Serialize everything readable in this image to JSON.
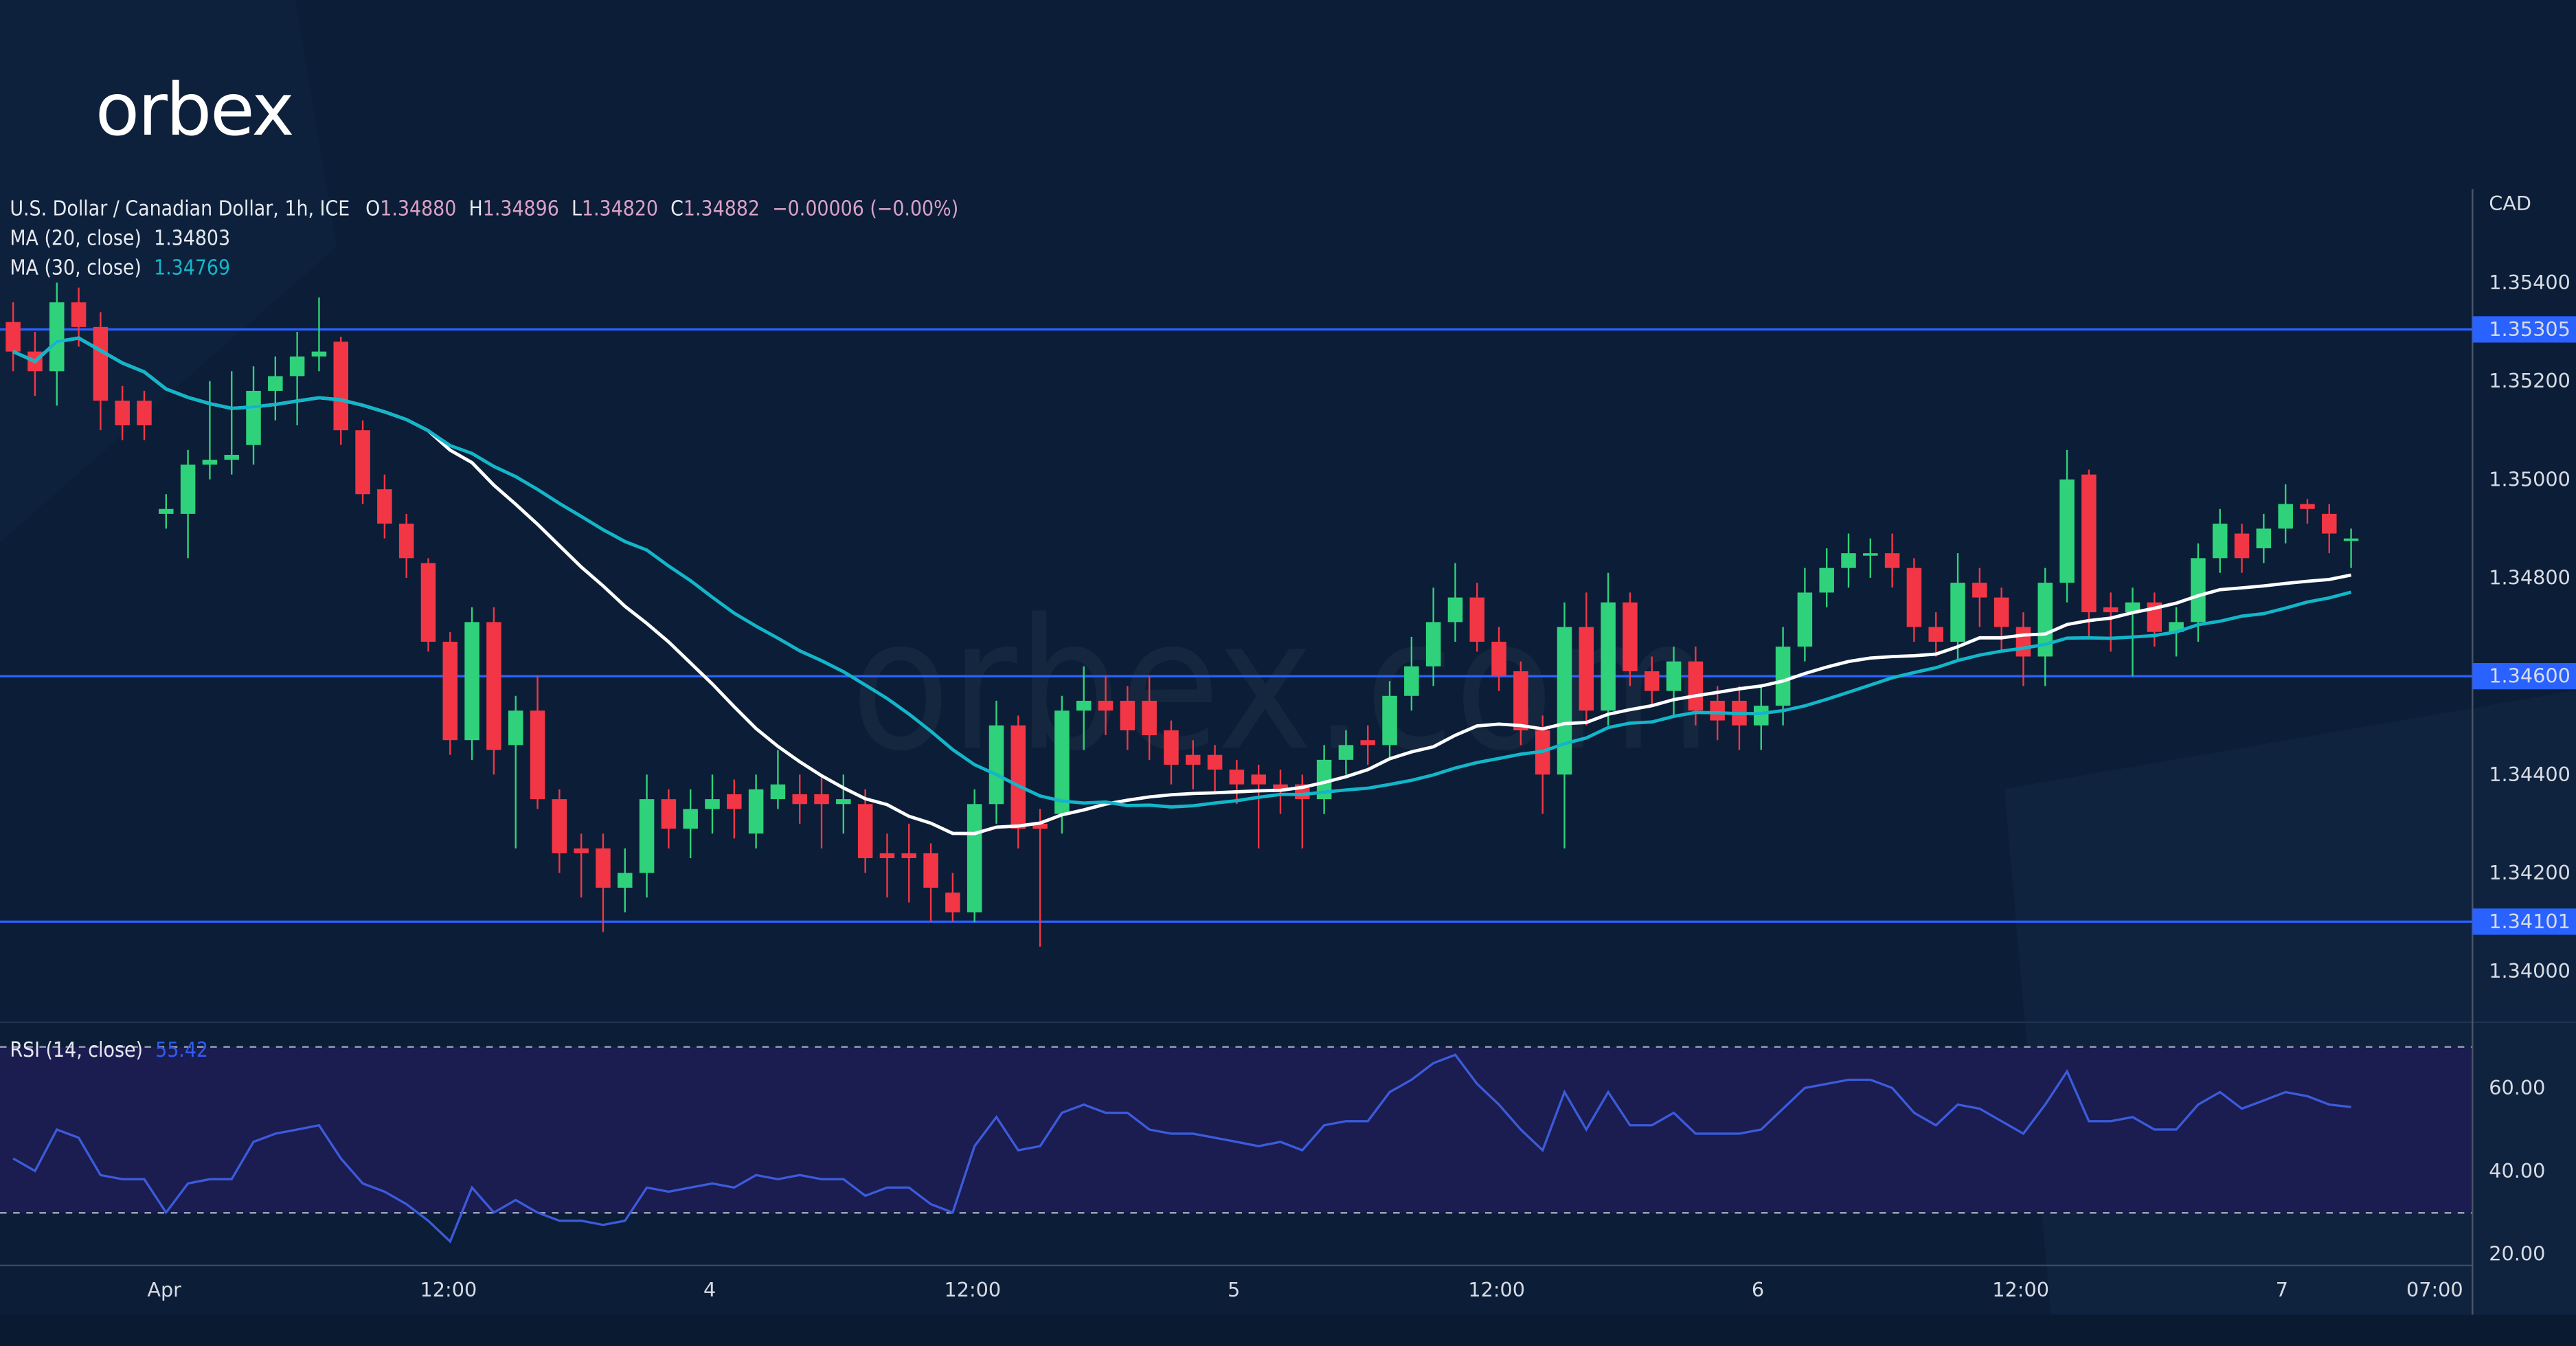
{
  "logo": "orbex",
  "watermark": "orbex.com",
  "colors": {
    "background": "#0b1d37",
    "up": "#2fd27a",
    "down": "#f23645",
    "level_line": "#2962ff",
    "ma20": "#ffffff",
    "ma30": "#13b6c9",
    "rsi_line": "#3b5bdb",
    "rsi_band": "#1b1c4f"
  },
  "legend": {
    "symbol": "U.S. Dollar / Canadian Dollar, 1h, ICE",
    "o_label": "O",
    "o": "1.34880",
    "h_label": "H",
    "h": "1.34896",
    "l_label": "L",
    "l": "1.34820",
    "c_label": "C",
    "c": "1.34882",
    "change": "−0.00006 (−0.00%)",
    "ma20_label": "MA (20, close)",
    "ma20_value": "1.34803",
    "ma30_label": "MA (30, close)",
    "ma30_value": "1.34769",
    "rsi_label": "RSI (14, close)",
    "rsi_value": "55.42"
  },
  "chart_data": {
    "type": "candlestick",
    "currency": "CAD",
    "interval": "1h",
    "x_ticks": [
      "Apr",
      "12:00",
      "4",
      "12:00",
      "5",
      "12:00",
      "6",
      "12:00",
      "7",
      "07:00"
    ],
    "y_ticks": [
      "1.35400",
      "1.35200",
      "1.35000",
      "1.34800",
      "1.34600",
      "1.34400",
      "1.34200",
      "1.34000"
    ],
    "ylim": [
      1.3394,
      1.3559
    ],
    "horizontal_levels": [
      "1.35305",
      "1.34600",
      "1.34101"
    ],
    "moving_averages": [
      {
        "name": "MA (20, close)",
        "period": 20
      },
      {
        "name": "MA (30, close)",
        "period": 30
      }
    ],
    "ohlc": [
      [
        1.3532,
        1.3536,
        1.3522,
        1.3526
      ],
      [
        1.3526,
        1.353,
        1.3517,
        1.3522
      ],
      [
        1.3522,
        1.354,
        1.3515,
        1.3536
      ],
      [
        1.3536,
        1.3539,
        1.3527,
        1.3531
      ],
      [
        1.3531,
        1.3534,
        1.351,
        1.3516
      ],
      [
        1.3516,
        1.3519,
        1.3508,
        1.3511
      ],
      [
        1.3516,
        1.3518,
        1.3508,
        1.3511
      ],
      [
        1.3493,
        1.3497,
        1.349,
        1.3494
      ],
      [
        1.3493,
        1.3506,
        1.3484,
        1.3503
      ],
      [
        1.3503,
        1.352,
        1.35,
        1.3504
      ],
      [
        1.3504,
        1.3522,
        1.3501,
        1.3505
      ],
      [
        1.3507,
        1.3523,
        1.3503,
        1.3518
      ],
      [
        1.3518,
        1.3525,
        1.3512,
        1.3521
      ],
      [
        1.3521,
        1.353,
        1.3511,
        1.3525
      ],
      [
        1.3525,
        1.3537,
        1.3522,
        1.3526
      ],
      [
        1.3528,
        1.3529,
        1.3507,
        1.351
      ],
      [
        1.351,
        1.3512,
        1.3495,
        1.3497
      ],
      [
        1.3498,
        1.3501,
        1.3488,
        1.3491
      ],
      [
        1.3491,
        1.3493,
        1.348,
        1.3484
      ],
      [
        1.3483,
        1.3484,
        1.3465,
        1.3467
      ],
      [
        1.3467,
        1.3469,
        1.3444,
        1.3447
      ],
      [
        1.3447,
        1.3474,
        1.3443,
        1.3471
      ],
      [
        1.3471,
        1.3474,
        1.344,
        1.3445
      ],
      [
        1.3446,
        1.3456,
        1.3425,
        1.3453
      ],
      [
        1.3453,
        1.346,
        1.3433,
        1.3435
      ],
      [
        1.3435,
        1.3437,
        1.342,
        1.3424
      ],
      [
        1.3425,
        1.3428,
        1.3415,
        1.3424
      ],
      [
        1.3425,
        1.3428,
        1.3408,
        1.3417
      ],
      [
        1.3417,
        1.3425,
        1.3412,
        1.342
      ],
      [
        1.342,
        1.344,
        1.3415,
        1.3435
      ],
      [
        1.3435,
        1.3437,
        1.3425,
        1.3429
      ],
      [
        1.3429,
        1.3437,
        1.3423,
        1.3433
      ],
      [
        1.3433,
        1.344,
        1.3428,
        1.3435
      ],
      [
        1.3436,
        1.3439,
        1.3427,
        1.3433
      ],
      [
        1.3428,
        1.344,
        1.3425,
        1.3437
      ],
      [
        1.3435,
        1.3445,
        1.3433,
        1.3438
      ],
      [
        1.3436,
        1.344,
        1.343,
        1.3434
      ],
      [
        1.3436,
        1.344,
        1.3425,
        1.3434
      ],
      [
        1.3434,
        1.344,
        1.3428,
        1.3435
      ],
      [
        1.3434,
        1.3437,
        1.342,
        1.3423
      ],
      [
        1.3424,
        1.3428,
        1.3415,
        1.3423
      ],
      [
        1.3424,
        1.343,
        1.3414,
        1.3423
      ],
      [
        1.3424,
        1.3426,
        1.341,
        1.3417
      ],
      [
        1.3416,
        1.342,
        1.341,
        1.3412
      ],
      [
        1.3412,
        1.3437,
        1.341,
        1.3434
      ],
      [
        1.3434,
        1.3455,
        1.343,
        1.345
      ],
      [
        1.345,
        1.3452,
        1.3425,
        1.3429
      ],
      [
        1.343,
        1.3433,
        1.3405,
        1.3429
      ],
      [
        1.3432,
        1.3456,
        1.3428,
        1.3453
      ],
      [
        1.3453,
        1.3462,
        1.3445,
        1.3455
      ],
      [
        1.3455,
        1.346,
        1.3448,
        1.3453
      ],
      [
        1.3455,
        1.3458,
        1.3445,
        1.3449
      ],
      [
        1.3455,
        1.346,
        1.3443,
        1.3448
      ],
      [
        1.3449,
        1.3451,
        1.3438,
        1.3442
      ],
      [
        1.3444,
        1.3447,
        1.3437,
        1.3442
      ],
      [
        1.3444,
        1.3446,
        1.3436,
        1.3441
      ],
      [
        1.3441,
        1.3443,
        1.3434,
        1.3438
      ],
      [
        1.344,
        1.3442,
        1.3425,
        1.3438
      ],
      [
        1.3438,
        1.3441,
        1.3432,
        1.3437
      ],
      [
        1.3438,
        1.344,
        1.3425,
        1.3435
      ],
      [
        1.3435,
        1.3446,
        1.3432,
        1.3443
      ],
      [
        1.3443,
        1.3449,
        1.344,
        1.3446
      ],
      [
        1.3447,
        1.345,
        1.3442,
        1.3446
      ],
      [
        1.3446,
        1.3459,
        1.3443,
        1.3456
      ],
      [
        1.3456,
        1.3468,
        1.3453,
        1.3462
      ],
      [
        1.3462,
        1.3478,
        1.3458,
        1.3471
      ],
      [
        1.3471,
        1.3483,
        1.3467,
        1.3476
      ],
      [
        1.3476,
        1.3479,
        1.3465,
        1.3467
      ],
      [
        1.3467,
        1.347,
        1.3457,
        1.346
      ],
      [
        1.3461,
        1.3463,
        1.3446,
        1.3449
      ],
      [
        1.3449,
        1.3452,
        1.3432,
        1.344
      ],
      [
        1.344,
        1.3475,
        1.3425,
        1.347
      ],
      [
        1.347,
        1.3477,
        1.345,
        1.3453
      ],
      [
        1.3453,
        1.3481,
        1.345,
        1.3475
      ],
      [
        1.3475,
        1.3477,
        1.3458,
        1.3461
      ],
      [
        1.3461,
        1.3464,
        1.3454,
        1.3457
      ],
      [
        1.3457,
        1.3466,
        1.3452,
        1.3463
      ],
      [
        1.3463,
        1.3466,
        1.345,
        1.3453
      ],
      [
        1.3455,
        1.3458,
        1.3447,
        1.3451
      ],
      [
        1.3455,
        1.3458,
        1.3445,
        1.345
      ],
      [
        1.345,
        1.3458,
        1.3445,
        1.3454
      ],
      [
        1.3454,
        1.347,
        1.345,
        1.3466
      ],
      [
        1.3466,
        1.3482,
        1.3463,
        1.3477
      ],
      [
        1.3477,
        1.3486,
        1.3474,
        1.3482
      ],
      [
        1.3482,
        1.3489,
        1.3478,
        1.3485
      ],
      [
        1.3485,
        1.3488,
        1.348,
        1.3485
      ],
      [
        1.3485,
        1.3489,
        1.3478,
        1.3482
      ],
      [
        1.3482,
        1.3484,
        1.3467,
        1.347
      ],
      [
        1.347,
        1.3473,
        1.3464,
        1.3467
      ],
      [
        1.3467,
        1.3485,
        1.3463,
        1.3479
      ],
      [
        1.3479,
        1.3482,
        1.347,
        1.3476
      ],
      [
        1.3476,
        1.3478,
        1.3465,
        1.347
      ],
      [
        1.347,
        1.3473,
        1.3458,
        1.3464
      ],
      [
        1.3464,
        1.3482,
        1.3458,
        1.3479
      ],
      [
        1.3479,
        1.3506,
        1.3475,
        1.35
      ],
      [
        1.3501,
        1.3502,
        1.3468,
        1.3473
      ],
      [
        1.3474,
        1.3477,
        1.3465,
        1.3473
      ],
      [
        1.3473,
        1.3478,
        1.346,
        1.3475
      ],
      [
        1.3475,
        1.3477,
        1.3466,
        1.3469
      ],
      [
        1.3469,
        1.3474,
        1.3464,
        1.3471
      ],
      [
        1.3471,
        1.3487,
        1.3467,
        1.3484
      ],
      [
        1.3484,
        1.3494,
        1.3481,
        1.3491
      ],
      [
        1.3489,
        1.3491,
        1.3481,
        1.3484
      ],
      [
        1.3486,
        1.3493,
        1.3483,
        1.349
      ],
      [
        1.349,
        1.3499,
        1.3487,
        1.3495
      ],
      [
        1.3495,
        1.3496,
        1.3491,
        1.3494
      ],
      [
        1.3493,
        1.3495,
        1.3485,
        1.3489
      ],
      [
        1.3488,
        1.349,
        1.3482,
        1.3488
      ]
    ],
    "rsi": {
      "name": "RSI (14, close)",
      "ylim": [
        16,
        77
      ],
      "y_ticks": [
        "60.00",
        "40.00",
        "20.00"
      ],
      "band": [
        30,
        70
      ],
      "values": [
        43,
        40,
        50,
        48,
        39,
        38,
        38,
        30,
        37,
        38,
        38,
        47,
        49,
        50,
        51,
        43,
        37,
        35,
        32,
        28,
        23,
        36,
        30,
        33,
        30,
        28,
        28,
        27,
        28,
        36,
        35,
        36,
        37,
        36,
        39,
        38,
        39,
        38,
        38,
        34,
        36,
        36,
        32,
        30,
        46,
        53,
        45,
        46,
        54,
        56,
        54,
        54,
        50,
        49,
        49,
        48,
        47,
        46,
        47,
        45,
        51,
        52,
        52,
        59,
        62,
        66,
        68,
        61,
        56,
        50,
        45,
        59,
        50,
        59,
        51,
        51,
        54,
        49,
        49,
        49,
        50,
        55,
        60,
        61,
        62,
        62,
        60,
        54,
        51,
        56,
        55,
        52,
        49,
        56,
        64,
        52,
        52,
        53,
        50,
        50,
        56,
        59,
        55,
        57,
        59,
        58,
        56,
        55.42
      ]
    }
  }
}
